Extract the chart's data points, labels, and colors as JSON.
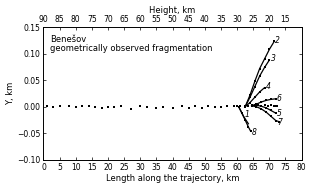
{
  "title_top": "Height, km",
  "xlabel": "Length along the trajectory, km",
  "ylabel": "Y, km",
  "xlim": [
    0,
    80
  ],
  "ylim": [
    -0.1,
    0.15
  ],
  "top_ticks": [
    90,
    85,
    80,
    75,
    70,
    65,
    60,
    55,
    50,
    45,
    40,
    35,
    30,
    25,
    20,
    15
  ],
  "top_tick_pos": [
    0,
    5,
    10,
    15,
    20,
    25,
    30,
    35,
    40,
    45,
    50,
    55,
    60,
    65,
    70,
    75
  ],
  "annotation_line1": "Benešov",
  "annotation_line2": "geometrically observed fragmentation",
  "scatter_points": [
    [
      1,
      0.001
    ],
    [
      3,
      0.0
    ],
    [
      5,
      0.001
    ],
    [
      8,
      0.001
    ],
    [
      10,
      0.0
    ],
    [
      12,
      0.001
    ],
    [
      14,
      0.001
    ],
    [
      16,
      0.0
    ],
    [
      18,
      -0.003
    ],
    [
      20,
      -0.001
    ],
    [
      22,
      0.0
    ],
    [
      24,
      0.001
    ],
    [
      27,
      -0.004
    ],
    [
      30,
      0.001
    ],
    [
      32,
      0.0
    ],
    [
      35,
      -0.002
    ],
    [
      37,
      0.0
    ],
    [
      40,
      -0.002
    ],
    [
      43,
      0.001
    ],
    [
      45,
      -0.003
    ],
    [
      47,
      0.001
    ],
    [
      49,
      -0.003
    ],
    [
      51,
      0.001
    ],
    [
      53,
      0.0
    ],
    [
      55,
      -0.001
    ],
    [
      57,
      0.001
    ],
    [
      59,
      0.002
    ],
    [
      60,
      0.001
    ],
    [
      61,
      0.002
    ]
  ],
  "line1_x": [
    60.5,
    62.0,
    63.5
  ],
  "line1_y": [
    0.0,
    -0.018,
    -0.032
  ],
  "line2_x": [
    62.5,
    64.0,
    65.5,
    67.0,
    68.5,
    70.0,
    71.5
  ],
  "line2_y": [
    0.0,
    0.022,
    0.048,
    0.072,
    0.09,
    0.108,
    0.123
  ],
  "line3_x": [
    62.5,
    64.0,
    65.5,
    67.0,
    68.5,
    70.0
  ],
  "line3_y": [
    0.0,
    0.018,
    0.038,
    0.058,
    0.074,
    0.088
  ],
  "line4_x": [
    62.5,
    64.0,
    65.5,
    67.0,
    68.5
  ],
  "line4_y": [
    0.0,
    0.008,
    0.018,
    0.028,
    0.036
  ],
  "line5_x": [
    64.5,
    66.0,
    67.5,
    69.0,
    70.5,
    72.0
  ],
  "line5_y": [
    0.002,
    0.003,
    0.001,
    -0.002,
    -0.007,
    -0.012
  ],
  "line6_x": [
    64.5,
    66.0,
    67.5,
    69.0,
    70.5,
    72.0
  ],
  "line6_y": [
    0.002,
    0.005,
    0.009,
    0.012,
    0.014,
    0.015
  ],
  "line7_x": [
    64.5,
    66.0,
    67.5,
    69.0,
    70.5,
    72.0,
    73.0
  ],
  "line7_y": [
    0.002,
    0.0,
    -0.004,
    -0.01,
    -0.018,
    -0.026,
    -0.028
  ],
  "line8_x": [
    60.5,
    61.5,
    62.5,
    63.5,
    64.2
  ],
  "line8_y": [
    0.0,
    -0.012,
    -0.025,
    -0.038,
    -0.046
  ],
  "dots_main_x": [
    62.5,
    63.5,
    64.5,
    65.5,
    66.5,
    67.5,
    68.5,
    69.5,
    70.5,
    71.5,
    72.0,
    72.5
  ],
  "dots_main_y": [
    0.002,
    0.002,
    0.003,
    0.003,
    0.003,
    0.002,
    0.003,
    0.002,
    0.003,
    0.002,
    0.002,
    0.002
  ],
  "label1_pos": [
    62.2,
    -0.015,
    "1"
  ],
  "label2_pos": [
    71.7,
    0.124,
    "2"
  ],
  "label3_pos": [
    70.5,
    0.09,
    "3"
  ],
  "label4_pos": [
    69.0,
    0.038,
    "4"
  ],
  "label5_pos": [
    72.2,
    -0.013,
    "5"
  ],
  "label6_pos": [
    72.2,
    0.016,
    "6"
  ],
  "label7_pos": [
    72.5,
    -0.029,
    "7"
  ],
  "label8_pos": [
    64.4,
    -0.048,
    "8"
  ]
}
